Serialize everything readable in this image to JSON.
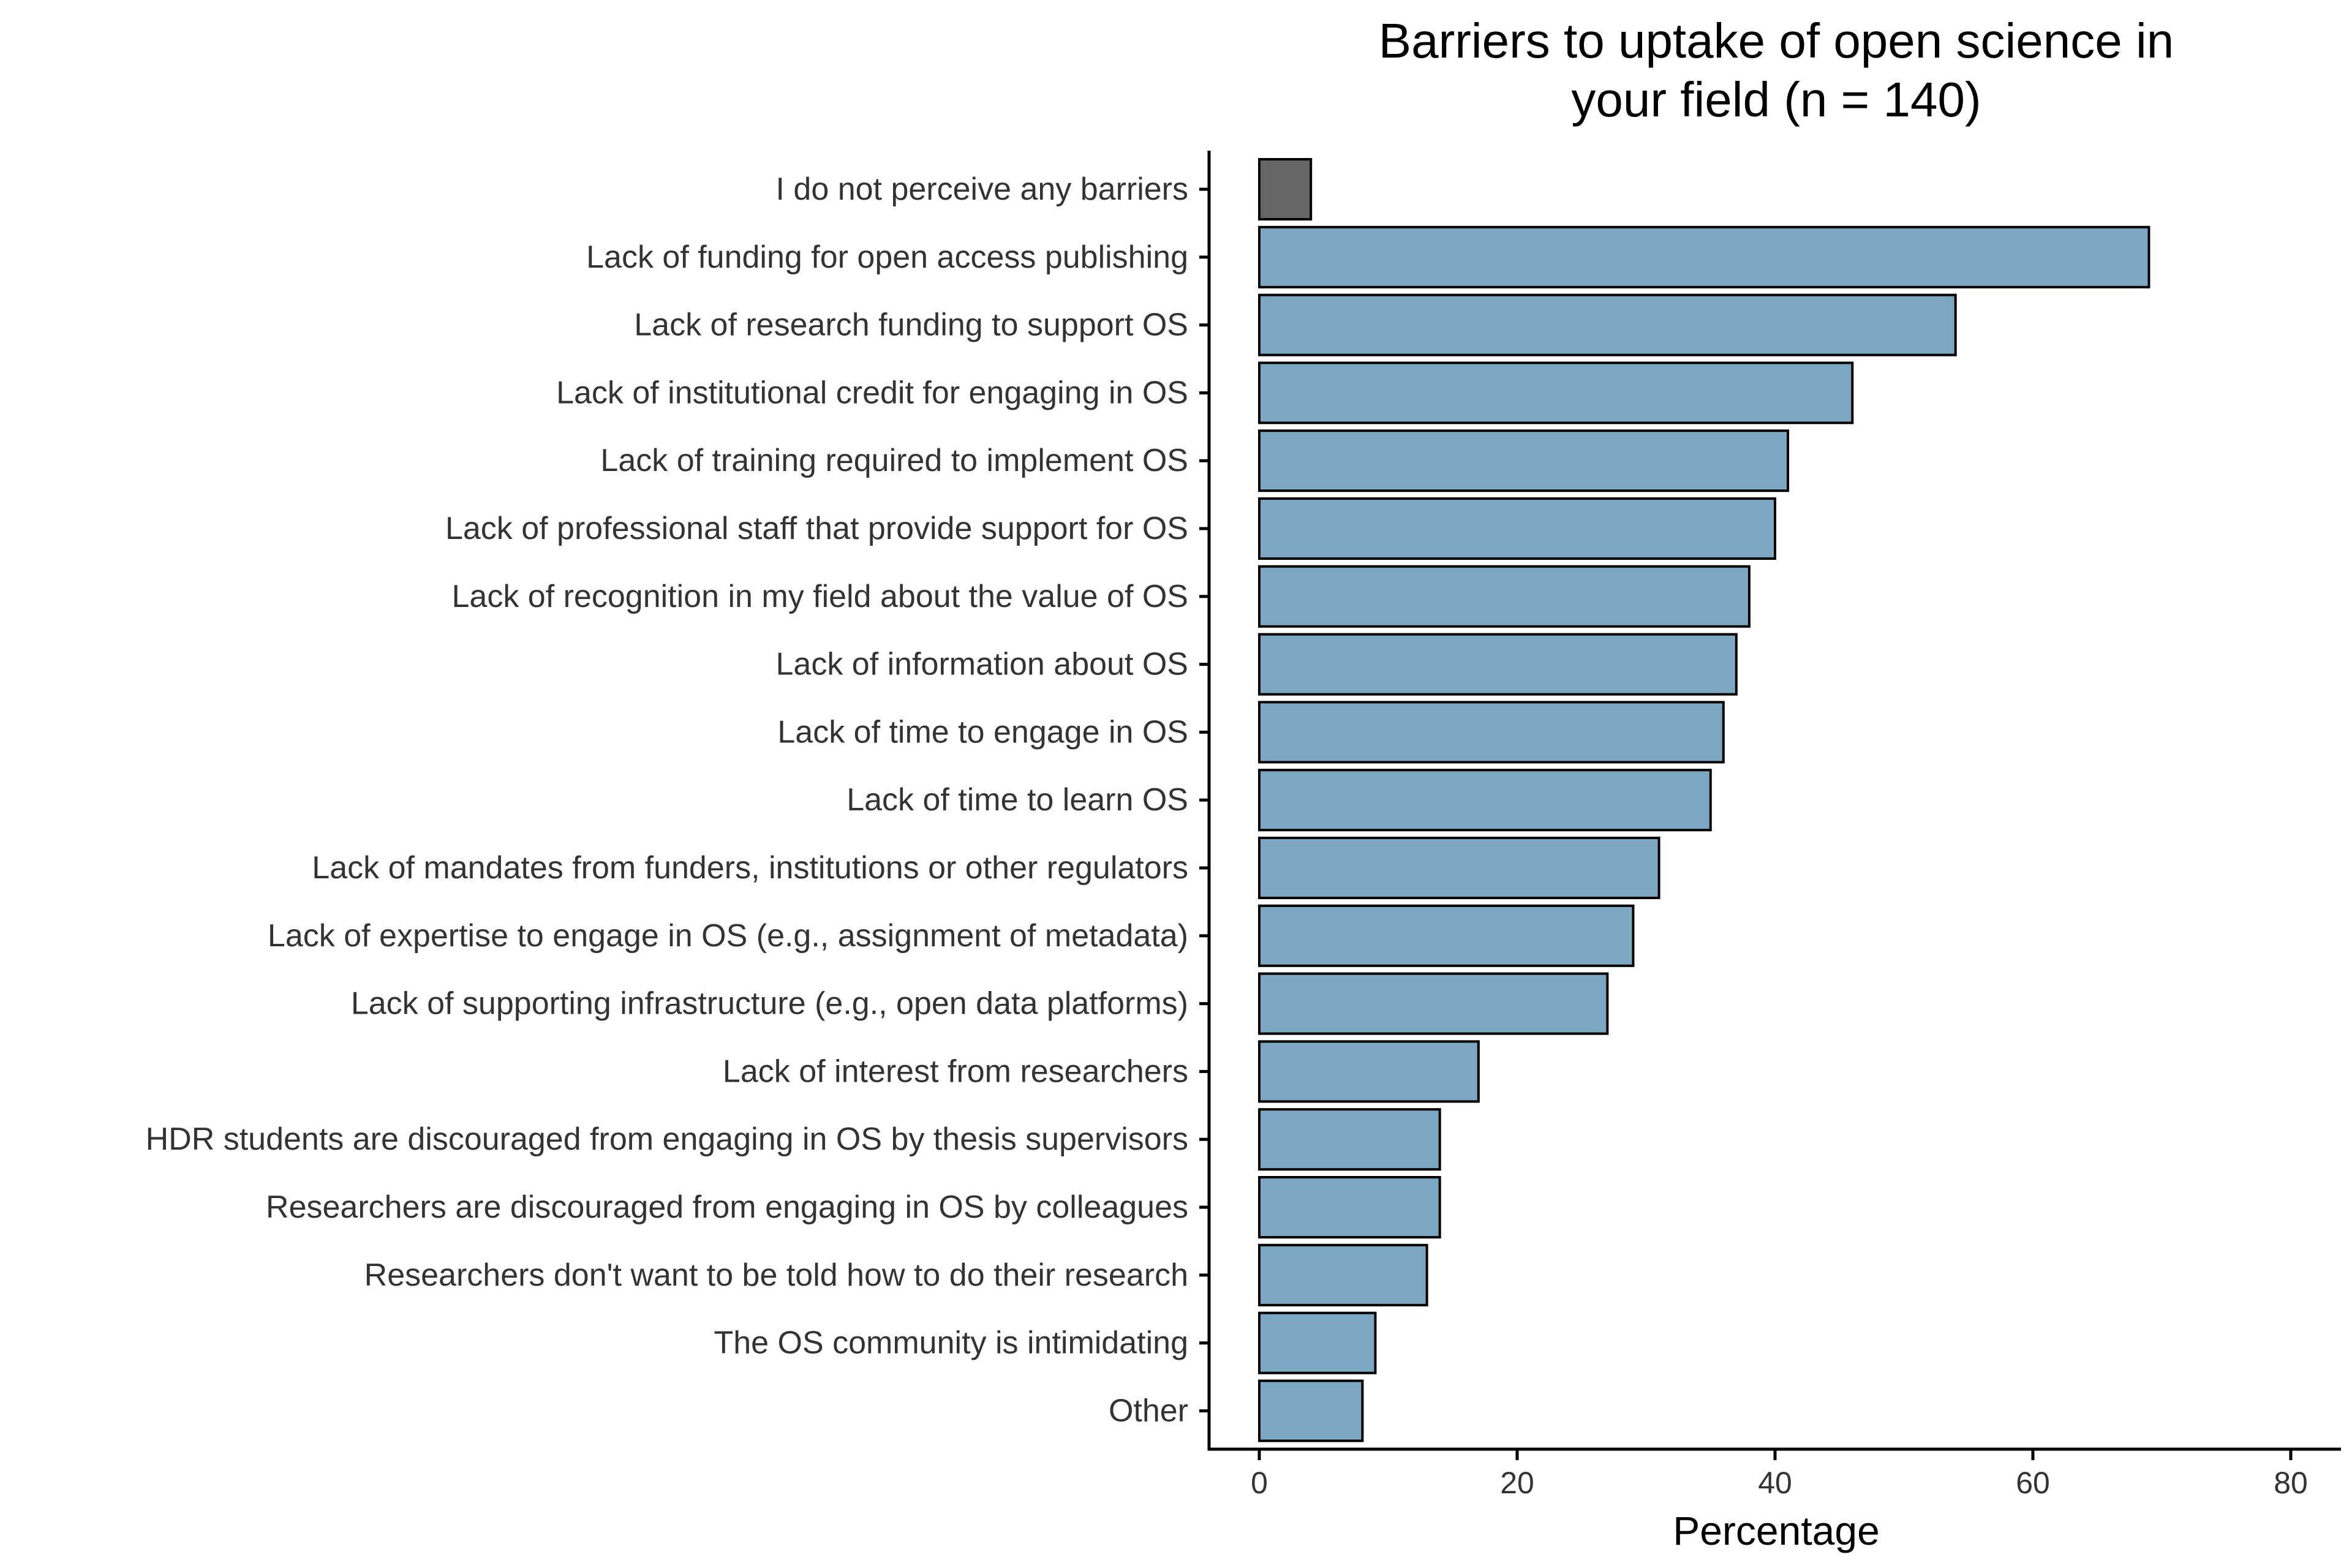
{
  "chart_data": {
    "type": "bar",
    "orientation": "horizontal",
    "title": [
      "Barriers to uptake of open science in",
      "your field (n = 140)"
    ],
    "xlabel": "Percentage",
    "ylabel": "",
    "xlim": [
      0,
      80
    ],
    "x_ticks": [
      0,
      20,
      40,
      60,
      80
    ],
    "grid": false,
    "legend": "none",
    "colors": {
      "default_bar": "#7BA7C2",
      "highlight_bar": "#666666",
      "bar_outline": "#000000",
      "axis": "#000000",
      "text": "#333333"
    },
    "categories": [
      "I do not perceive any barriers",
      "Lack of funding for open access publishing",
      "Lack of research funding to support OS",
      "Lack of institutional credit for engaging in OS",
      "Lack of training required to implement OS",
      "Lack of professional staff that provide support for OS",
      "Lack of recognition in my field about the value of OS",
      "Lack of information about OS",
      "Lack of time to engage in OS",
      "Lack of time to learn OS",
      "Lack of mandates from funders, institutions or other regulators",
      "Lack of expertise to engage in OS (e.g., assignment of metadata)",
      "Lack of supporting infrastructure (e.g., open data platforms)",
      "Lack of interest from researchers",
      "HDR students are discouraged from engaging in OS by thesis supervisors",
      "Researchers are discouraged from engaging in OS by colleagues",
      "Researchers don't want to be told how to do their research",
      "The OS community is intimidating",
      "Other"
    ],
    "values": [
      4,
      69,
      54,
      46,
      41,
      40,
      38,
      37,
      36,
      35,
      31,
      29,
      27,
      17,
      14,
      14,
      13,
      9,
      8
    ],
    "highlight": [
      true,
      false,
      false,
      false,
      false,
      false,
      false,
      false,
      false,
      false,
      false,
      false,
      false,
      false,
      false,
      false,
      false,
      false,
      false
    ]
  }
}
